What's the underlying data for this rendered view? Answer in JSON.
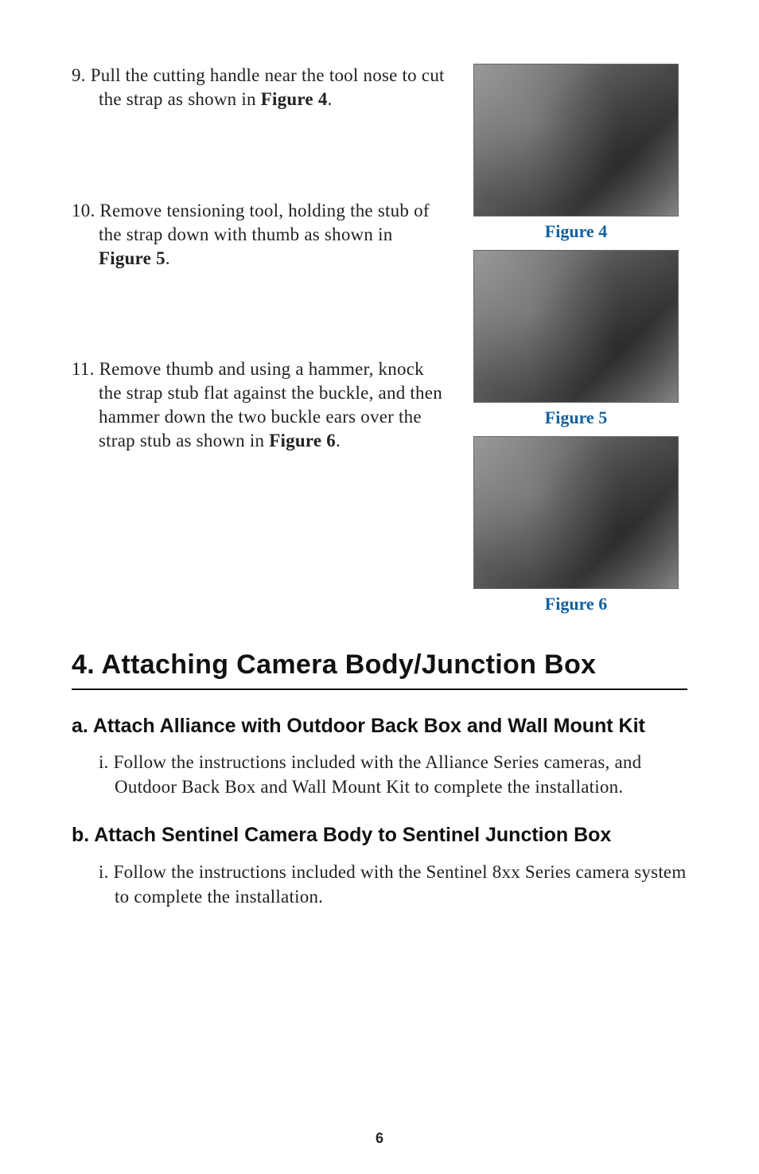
{
  "steps": {
    "s9": {
      "num": "9.",
      "text_before": " Pull the cutting handle near the tool nose to cut the strap as shown in ",
      "bold": "Figure 4",
      "text_after": "."
    },
    "s10": {
      "num": "10.",
      "text_before": " Remove tensioning tool, holding the stub of the strap down with thumb as shown in ",
      "bold": "Figure 5",
      "text_after": "."
    },
    "s11": {
      "num": "11.",
      "text_before": " Remove thumb and using a hammer, knock the strap stub flat against the buckle, and then hammer down the two buckle ears over the strap stub as shown in ",
      "bold": "Figure 6",
      "text_after": "."
    }
  },
  "figures": {
    "f4": "Figure 4",
    "f5": "Figure 5",
    "f6": "Figure 6"
  },
  "section": {
    "title": "4. Attaching Camera Body/Junction Box",
    "sub_a": {
      "heading": "a. Attach Alliance with Outdoor Back Box and Wall Mount Kit",
      "item_num": "i.",
      "item_text": " Follow the instructions included with the Alliance Series cameras, and Outdoor Back Box and Wall Mount Kit to complete the installation."
    },
    "sub_b": {
      "heading": "b. Attach Sentinel Camera Body to Sentinel Junction Box",
      "item_num": "i.",
      "item_text": " Follow the instructions included with the Sentinel 8xx Series camera system to complete the installation."
    }
  },
  "page_number": "6",
  "colors": {
    "figure_caption": "#1261A0",
    "text": "#222222",
    "rule": "#111111"
  }
}
